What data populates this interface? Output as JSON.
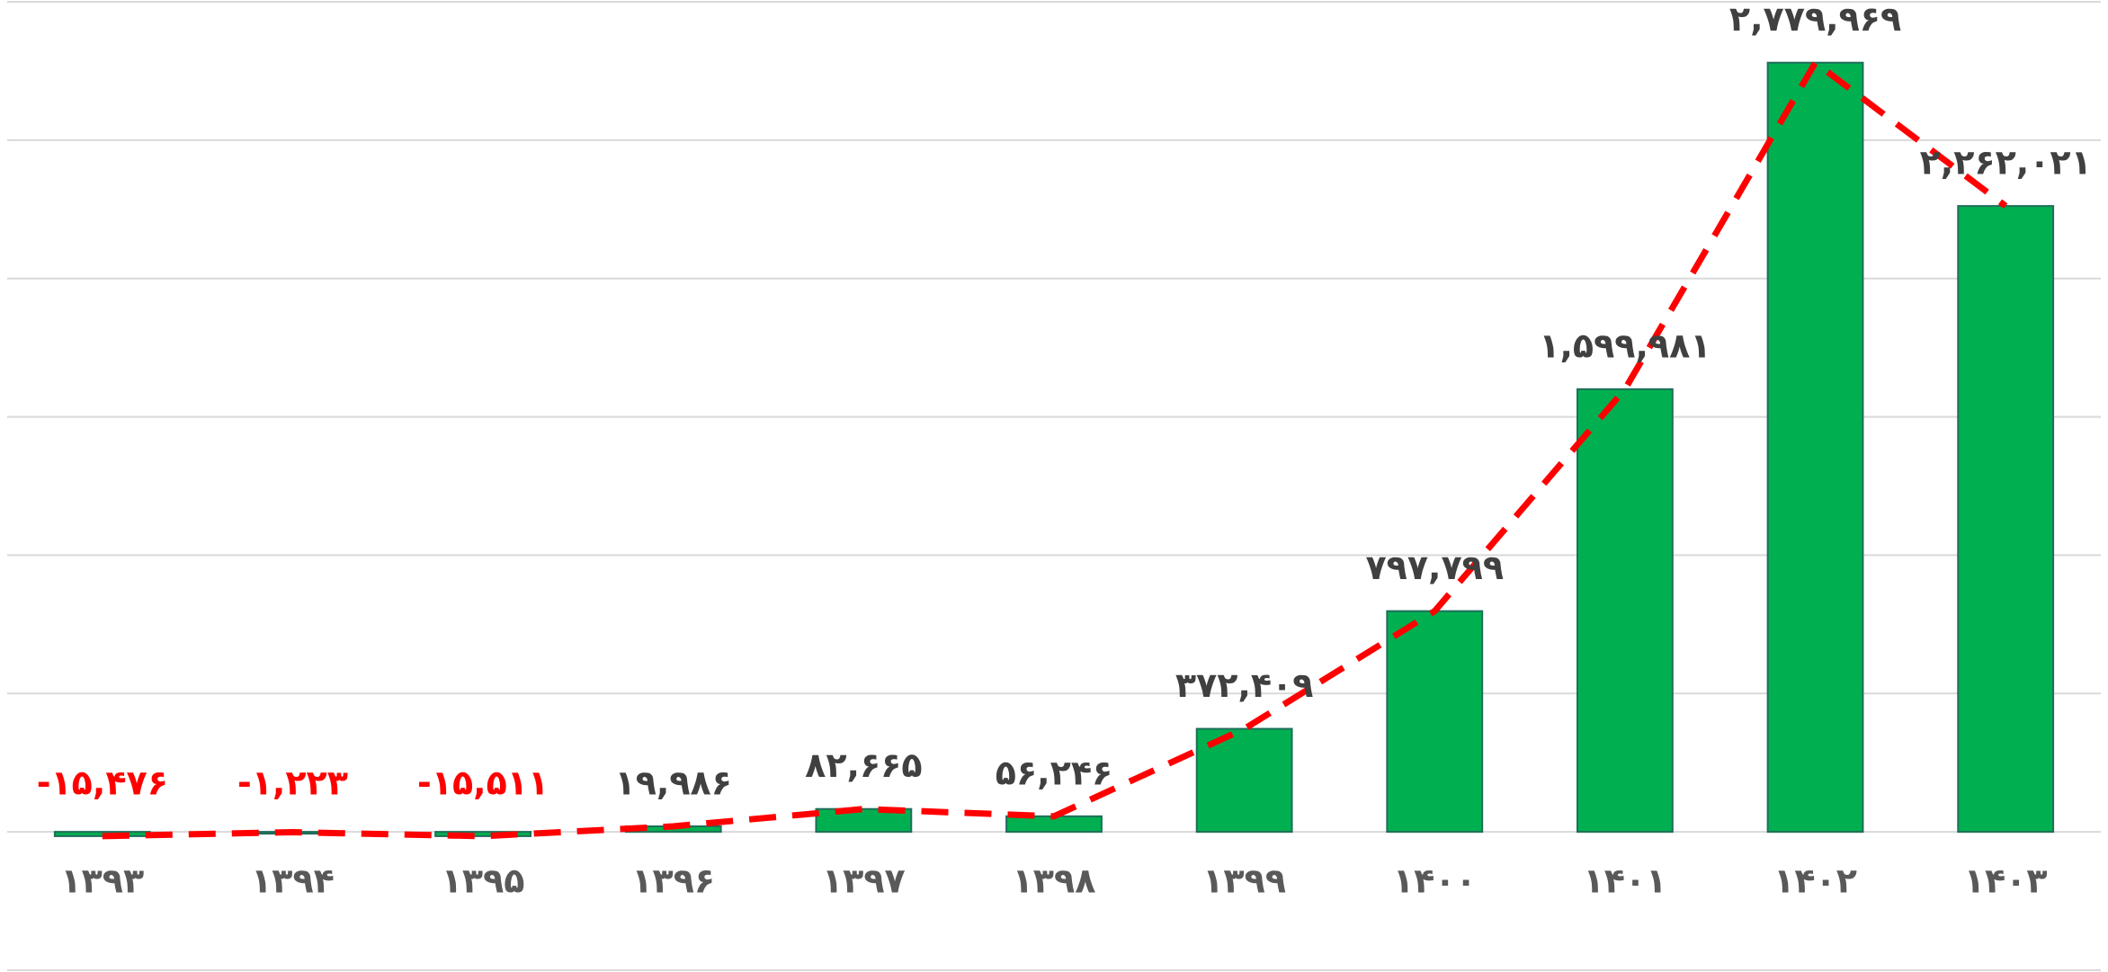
{
  "chart_data": {
    "type": "bar",
    "categories": [
      "۱۳۹۳",
      "۱۳۹۴",
      "۱۳۹۵",
      "۱۳۹۶",
      "۱۳۹۷",
      "۱۳۹۸",
      "۱۳۹۹",
      "۱۴۰۰",
      "۱۴۰۱",
      "۱۴۰۲",
      "۱۴۰۳"
    ],
    "values": [
      -15476,
      -1223,
      -15511,
      19986,
      82665,
      56246,
      372409,
      797799,
      1599981,
      2779969,
      2262021
    ],
    "value_labels": [
      "-۱۵,۴۷۶",
      "-۱,۲۲۳",
      "-۱۵,۵۱۱",
      "۱۹,۹۸۶",
      "۸۲,۶۶۵",
      "۵۶,۲۴۶",
      "۳۷۲,۴۰۹",
      "۷۹۷,۷۹۹",
      "۱,۵۹۹,۹۸۱",
      "۲,۷۷۹,۹۶۹",
      "۲,۲۶۲,۰۲۱"
    ],
    "color": "#00b050",
    "edge_color": "#1f6e5a",
    "line_color": "#ff0000",
    "line_dashed": true,
    "label_color": "#404040",
    "negative_label_color": "#ff0000",
    "ylim": [
      -500000,
      3000000
    ],
    "yticks": [
      -500000,
      0,
      500000,
      1000000,
      1500000,
      2000000,
      2500000,
      3000000
    ],
    "grid": true
  }
}
